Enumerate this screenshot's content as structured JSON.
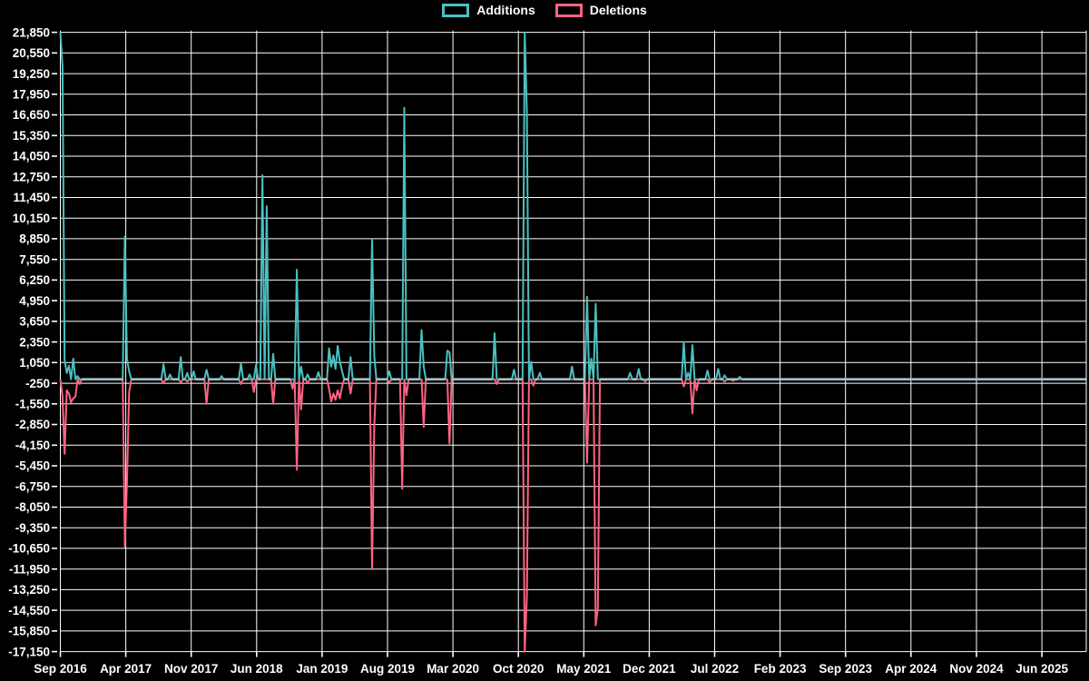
{
  "colors": {
    "background": "#000000",
    "grid": "#ffffff",
    "text": "#ffffff",
    "additions": "#4bc0c0",
    "deletions": "#ff6384",
    "zero_baseline": "#a7c0c9"
  },
  "chart_data": {
    "type": "line",
    "title": "",
    "xlabel": "",
    "ylabel": "",
    "legend_position": "top",
    "grid": true,
    "ylim": [
      -17150,
      21850
    ],
    "y_step": 1300,
    "y_tick_values": [
      21850,
      20550,
      19250,
      17950,
      16650,
      15350,
      14050,
      12750,
      11450,
      10150,
      8850,
      7550,
      6250,
      4950,
      3650,
      2350,
      1050,
      -250,
      -1550,
      -2850,
      -4150,
      -5450,
      -6750,
      -8050,
      -9350,
      -10650,
      -11950,
      -13250,
      -14550,
      -15850,
      -17150
    ],
    "x_tick_labels": [
      "Sep 2016",
      "Apr 2017",
      "Nov 2017",
      "Jun 2018",
      "Jan 2019",
      "Aug 2019",
      "Mar 2020",
      "Oct 2020",
      "May 2021",
      "Dec 2021",
      "Jul 2022",
      "Feb 2023",
      "Sep 2023",
      "Apr 2024",
      "Nov 2024",
      "Jun 2025"
    ],
    "weeks_total": 478,
    "weeks_per_x_tick": 30.436,
    "baseline_value": 0,
    "series": [
      {
        "name": "Additions",
        "color": "#4bc0c0",
        "default_value": 0,
        "points": [
          [
            0,
            21850
          ],
          [
            1,
            19700
          ],
          [
            2,
            1200
          ],
          [
            3,
            400
          ],
          [
            4,
            850
          ],
          [
            6,
            1300
          ],
          [
            8,
            200
          ],
          [
            30,
            8990
          ],
          [
            31,
            1300
          ],
          [
            32,
            500
          ],
          [
            48,
            950
          ],
          [
            51,
            300
          ],
          [
            56,
            1400
          ],
          [
            59,
            400
          ],
          [
            62,
            500
          ],
          [
            68,
            600
          ],
          [
            75,
            200
          ],
          [
            84,
            1000
          ],
          [
            88,
            300
          ],
          [
            91,
            900
          ],
          [
            94,
            12850
          ],
          [
            96,
            10900
          ],
          [
            99,
            1600
          ],
          [
            110,
            6900
          ],
          [
            112,
            800
          ],
          [
            115,
            300
          ],
          [
            120,
            450
          ],
          [
            125,
            1950
          ],
          [
            126,
            800
          ],
          [
            127,
            1500
          ],
          [
            128,
            650
          ],
          [
            129,
            2100
          ],
          [
            130,
            1100
          ],
          [
            131,
            550
          ],
          [
            135,
            1400
          ],
          [
            145,
            8850
          ],
          [
            146,
            1500
          ],
          [
            153,
            500
          ],
          [
            160,
            17100
          ],
          [
            168,
            3100
          ],
          [
            169,
            800
          ],
          [
            180,
            1800
          ],
          [
            181,
            1700
          ],
          [
            202,
            2900
          ],
          [
            211,
            600
          ],
          [
            216,
            21850
          ],
          [
            217,
            16800
          ],
          [
            219,
            1100
          ],
          [
            223,
            400
          ],
          [
            238,
            800
          ],
          [
            245,
            5200
          ],
          [
            247,
            1300
          ],
          [
            249,
            4750
          ],
          [
            265,
            400
          ],
          [
            269,
            650
          ],
          [
            290,
            2350
          ],
          [
            292,
            400
          ],
          [
            294,
            2150
          ],
          [
            301,
            550
          ],
          [
            306,
            650
          ],
          [
            309,
            250
          ],
          [
            316,
            150
          ]
        ]
      },
      {
        "name": "Deletions",
        "color": "#ff6384",
        "default_value": 0,
        "points": [
          [
            1,
            -1100
          ],
          [
            2,
            -4700
          ],
          [
            3,
            -700
          ],
          [
            4,
            -900
          ],
          [
            5,
            -1450
          ],
          [
            6,
            -1200
          ],
          [
            7,
            -1100
          ],
          [
            9,
            -300
          ],
          [
            30,
            -10550
          ],
          [
            31,
            -6500
          ],
          [
            32,
            -800
          ],
          [
            48,
            -250
          ],
          [
            56,
            -200
          ],
          [
            59,
            -150
          ],
          [
            68,
            -1550
          ],
          [
            84,
            -300
          ],
          [
            90,
            -800
          ],
          [
            99,
            -1550
          ],
          [
            108,
            -600
          ],
          [
            110,
            -5700
          ],
          [
            112,
            -1900
          ],
          [
            115,
            -250
          ],
          [
            125,
            -600
          ],
          [
            126,
            -1400
          ],
          [
            127,
            -900
          ],
          [
            128,
            -1300
          ],
          [
            129,
            -700
          ],
          [
            130,
            -1200
          ],
          [
            131,
            -500
          ],
          [
            135,
            -900
          ],
          [
            145,
            -11950
          ],
          [
            146,
            -3000
          ],
          [
            153,
            -200
          ],
          [
            159,
            -6900
          ],
          [
            161,
            -1000
          ],
          [
            169,
            -3000
          ],
          [
            181,
            -4050
          ],
          [
            203,
            -300
          ],
          [
            216,
            -17150
          ],
          [
            217,
            -13650
          ],
          [
            220,
            -400
          ],
          [
            245,
            -5250
          ],
          [
            249,
            -15500
          ],
          [
            250,
            -14400
          ],
          [
            272,
            -150
          ],
          [
            290,
            -450
          ],
          [
            294,
            -2150
          ],
          [
            296,
            -700
          ],
          [
            302,
            -200
          ],
          [
            309,
            -150
          ],
          [
            313,
            -100
          ]
        ]
      }
    ]
  }
}
